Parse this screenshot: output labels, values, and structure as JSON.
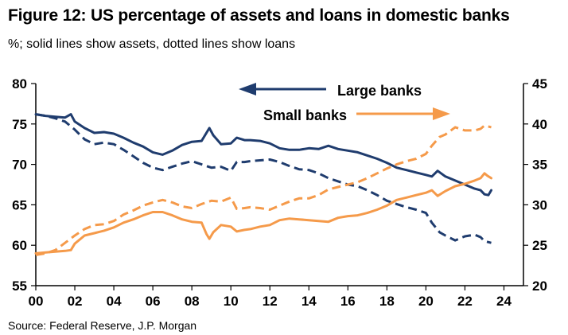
{
  "title": "Figure 12: US percentage of assets and loans in domestic banks",
  "subtitle": "%; solid lines show assets, dotted lines show loans",
  "source": "Source: Federal Reserve, J.P. Morgan",
  "colors": {
    "large": "#1f3c6e",
    "small": "#f59a4a",
    "axis": "#000000"
  },
  "annotations": {
    "large": "Large banks",
    "small": "Small banks"
  },
  "chart_data": {
    "type": "line",
    "x_tick_labels": [
      "00",
      "02",
      "04",
      "06",
      "08",
      "10",
      "12",
      "14",
      "16",
      "18",
      "20",
      "22",
      "24"
    ],
    "x_ticks": [
      2000,
      2002,
      2004,
      2006,
      2008,
      2010,
      2012,
      2014,
      2016,
      2018,
      2020,
      2022,
      2024
    ],
    "xlim": [
      2000,
      2025
    ],
    "y_left_ticks": [
      55,
      60,
      65,
      70,
      75,
      80
    ],
    "ylim_left": [
      55,
      80
    ],
    "y_right_ticks": [
      20,
      25,
      30,
      35,
      40,
      45
    ],
    "ylim_right": [
      20,
      45
    ],
    "series": [
      {
        "name": "Large banks",
        "style": "solid",
        "axis": "left",
        "color": "#1f3c6e",
        "points": [
          [
            2000,
            76.2
          ],
          [
            2000.5,
            76.0
          ],
          [
            2001,
            75.9
          ],
          [
            2001.5,
            75.8
          ],
          [
            2001.8,
            76.2
          ],
          [
            2002,
            75.3
          ],
          [
            2002.5,
            74.5
          ],
          [
            2003,
            73.9
          ],
          [
            2003.5,
            74.0
          ],
          [
            2004,
            73.8
          ],
          [
            2004.5,
            73.3
          ],
          [
            2005,
            72.7
          ],
          [
            2005.5,
            72.2
          ],
          [
            2006,
            71.5
          ],
          [
            2006.5,
            71.2
          ],
          [
            2007,
            71.7
          ],
          [
            2007.5,
            72.4
          ],
          [
            2008,
            72.8
          ],
          [
            2008.5,
            72.9
          ],
          [
            2008.75,
            73.9
          ],
          [
            2008.9,
            74.5
          ],
          [
            2009.1,
            73.6
          ],
          [
            2009.5,
            72.5
          ],
          [
            2010,
            72.6
          ],
          [
            2010.3,
            73.3
          ],
          [
            2010.7,
            73.0
          ],
          [
            2011,
            73.0
          ],
          [
            2011.5,
            72.9
          ],
          [
            2012,
            72.6
          ],
          [
            2012.5,
            72.0
          ],
          [
            2013,
            71.8
          ],
          [
            2013.5,
            71.8
          ],
          [
            2014,
            72.0
          ],
          [
            2014.5,
            71.9
          ],
          [
            2015,
            72.3
          ],
          [
            2015.5,
            71.9
          ],
          [
            2016,
            71.7
          ],
          [
            2016.5,
            71.5
          ],
          [
            2017,
            71.1
          ],
          [
            2017.5,
            70.7
          ],
          [
            2018,
            70.2
          ],
          [
            2018.5,
            69.6
          ],
          [
            2019,
            69.3
          ],
          [
            2019.5,
            69.0
          ],
          [
            2020,
            68.7
          ],
          [
            2020.3,
            68.5
          ],
          [
            2020.6,
            69.2
          ],
          [
            2021,
            68.5
          ],
          [
            2021.5,
            68.0
          ],
          [
            2022,
            67.5
          ],
          [
            2022.5,
            67.0
          ],
          [
            2022.8,
            66.8
          ],
          [
            2023,
            66.3
          ],
          [
            2023.2,
            66.2
          ],
          [
            2023.35,
            66.8
          ]
        ]
      },
      {
        "name": "Large banks",
        "style": "dashed",
        "axis": "right",
        "color": "#1f3c6e",
        "points": [
          [
            2000,
            41.2
          ],
          [
            2000.5,
            41.0
          ],
          [
            2001,
            40.7
          ],
          [
            2001.5,
            40.3
          ],
          [
            2002,
            39.3
          ],
          [
            2002.5,
            38.1
          ],
          [
            2003,
            37.5
          ],
          [
            2003.5,
            37.7
          ],
          [
            2004,
            37.5
          ],
          [
            2004.5,
            36.8
          ],
          [
            2005,
            36.0
          ],
          [
            2005.5,
            35.2
          ],
          [
            2006,
            34.6
          ],
          [
            2006.5,
            34.3
          ],
          [
            2007,
            34.7
          ],
          [
            2007.5,
            35.1
          ],
          [
            2008,
            35.4
          ],
          [
            2008.5,
            35.0
          ],
          [
            2009,
            34.6
          ],
          [
            2009.5,
            34.7
          ],
          [
            2010,
            34.2
          ],
          [
            2010.3,
            35.3
          ],
          [
            2010.7,
            35.3
          ],
          [
            2011,
            35.4
          ],
          [
            2011.5,
            35.5
          ],
          [
            2012,
            35.6
          ],
          [
            2012.5,
            35.3
          ],
          [
            2013,
            34.8
          ],
          [
            2013.5,
            34.4
          ],
          [
            2014,
            34.3
          ],
          [
            2014.5,
            33.9
          ],
          [
            2015,
            33.3
          ],
          [
            2015.5,
            32.9
          ],
          [
            2016,
            32.5
          ],
          [
            2016.5,
            32.3
          ],
          [
            2017,
            31.8
          ],
          [
            2017.5,
            31.2
          ],
          [
            2018,
            30.5
          ],
          [
            2018.5,
            30.1
          ],
          [
            2019,
            29.7
          ],
          [
            2019.5,
            29.4
          ],
          [
            2020,
            29.0
          ],
          [
            2020.3,
            27.8
          ],
          [
            2020.7,
            26.6
          ],
          [
            2021,
            26.2
          ],
          [
            2021.5,
            25.6
          ],
          [
            2022,
            26.1
          ],
          [
            2022.5,
            26.3
          ],
          [
            2022.8,
            26.0
          ],
          [
            2023,
            25.5
          ],
          [
            2023.35,
            25.3
          ]
        ]
      },
      {
        "name": "Small banks",
        "style": "solid",
        "axis": "right",
        "color": "#f59a4a",
        "points": [
          [
            2000,
            24.0
          ],
          [
            2000.5,
            24.1
          ],
          [
            2001,
            24.2
          ],
          [
            2001.5,
            24.3
          ],
          [
            2001.8,
            24.4
          ],
          [
            2002,
            25.2
          ],
          [
            2002.5,
            26.2
          ],
          [
            2003,
            26.5
          ],
          [
            2003.5,
            26.8
          ],
          [
            2004,
            27.2
          ],
          [
            2004.5,
            27.8
          ],
          [
            2005,
            28.2
          ],
          [
            2005.5,
            28.7
          ],
          [
            2006,
            29.1
          ],
          [
            2006.5,
            29.1
          ],
          [
            2007,
            28.7
          ],
          [
            2007.5,
            28.2
          ],
          [
            2008,
            27.9
          ],
          [
            2008.5,
            27.8
          ],
          [
            2008.75,
            26.4
          ],
          [
            2008.9,
            25.8
          ],
          [
            2009.1,
            26.6
          ],
          [
            2009.5,
            27.5
          ],
          [
            2010,
            27.3
          ],
          [
            2010.3,
            26.7
          ],
          [
            2010.7,
            26.9
          ],
          [
            2011,
            27.0
          ],
          [
            2011.5,
            27.3
          ],
          [
            2012,
            27.5
          ],
          [
            2012.5,
            28.1
          ],
          [
            2013,
            28.3
          ],
          [
            2013.5,
            28.2
          ],
          [
            2014,
            28.1
          ],
          [
            2014.5,
            28.0
          ],
          [
            2015,
            27.9
          ],
          [
            2015.5,
            28.4
          ],
          [
            2016,
            28.6
          ],
          [
            2016.5,
            28.7
          ],
          [
            2017,
            29.0
          ],
          [
            2017.5,
            29.4
          ],
          [
            2018,
            29.9
          ],
          [
            2018.5,
            30.6
          ],
          [
            2019,
            30.9
          ],
          [
            2019.5,
            31.2
          ],
          [
            2020,
            31.5
          ],
          [
            2020.3,
            31.8
          ],
          [
            2020.6,
            31.1
          ],
          [
            2021,
            31.7
          ],
          [
            2021.5,
            32.3
          ],
          [
            2022,
            32.6
          ],
          [
            2022.5,
            33.0
          ],
          [
            2022.8,
            33.3
          ],
          [
            2023,
            33.9
          ],
          [
            2023.15,
            33.6
          ],
          [
            2023.35,
            33.3
          ]
        ]
      },
      {
        "name": "Small banks",
        "style": "dashed",
        "axis": "left",
        "color": "#f59a4a",
        "points": [
          [
            2000,
            58.8
          ],
          [
            2000.5,
            59.0
          ],
          [
            2001,
            59.4
          ],
          [
            2001.5,
            60.3
          ],
          [
            2002,
            61.2
          ],
          [
            2002.5,
            62.0
          ],
          [
            2003,
            62.5
          ],
          [
            2003.5,
            62.6
          ],
          [
            2004,
            63.0
          ],
          [
            2004.5,
            63.8
          ],
          [
            2005,
            64.3
          ],
          [
            2005.5,
            64.9
          ],
          [
            2006,
            65.3
          ],
          [
            2006.5,
            65.6
          ],
          [
            2007,
            65.3
          ],
          [
            2007.5,
            64.8
          ],
          [
            2008,
            64.6
          ],
          [
            2008.5,
            65.1
          ],
          [
            2009,
            65.5
          ],
          [
            2009.5,
            65.4
          ],
          [
            2010,
            65.9
          ],
          [
            2010.3,
            64.5
          ],
          [
            2010.7,
            64.6
          ],
          [
            2011,
            64.7
          ],
          [
            2011.5,
            64.6
          ],
          [
            2012,
            64.4
          ],
          [
            2012.5,
            64.9
          ],
          [
            2013,
            65.4
          ],
          [
            2013.5,
            65.8
          ],
          [
            2014,
            65.8
          ],
          [
            2014.5,
            66.2
          ],
          [
            2015,
            66.9
          ],
          [
            2015.5,
            67.2
          ],
          [
            2016,
            67.5
          ],
          [
            2016.5,
            67.8
          ],
          [
            2017,
            68.3
          ],
          [
            2017.5,
            68.9
          ],
          [
            2018,
            69.5
          ],
          [
            2018.5,
            70.0
          ],
          [
            2019,
            70.4
          ],
          [
            2019.5,
            70.7
          ],
          [
            2020,
            71.3
          ],
          [
            2020.3,
            72.3
          ],
          [
            2020.7,
            73.4
          ],
          [
            2021,
            73.7
          ],
          [
            2021.5,
            74.6
          ],
          [
            2022,
            74.2
          ],
          [
            2022.5,
            74.2
          ],
          [
            2022.8,
            74.4
          ],
          [
            2023,
            74.8
          ],
          [
            2023.35,
            74.6
          ]
        ]
      }
    ]
  }
}
